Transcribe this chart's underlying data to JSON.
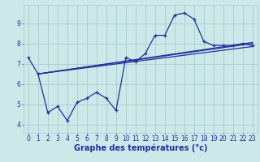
{
  "xlabel": "Graphe des températures (°c)",
  "bg_color": "#cce8e8",
  "grid_color": "#aacccc",
  "line_color": "#2030a0",
  "x_ticks": [
    0,
    1,
    2,
    3,
    4,
    5,
    6,
    7,
    8,
    9,
    10,
    11,
    12,
    13,
    14,
    15,
    16,
    17,
    18,
    19,
    20,
    21,
    22,
    23
  ],
  "y_ticks": [
    4,
    5,
    6,
    7,
    8,
    9
  ],
  "ylim": [
    3.6,
    9.9
  ],
  "xlim": [
    -0.5,
    23.5
  ],
  "main_series_x": [
    0,
    1,
    2,
    3,
    4,
    5,
    6,
    7,
    8,
    9,
    10,
    11,
    12,
    13,
    14,
    15,
    16,
    17,
    18,
    19,
    20,
    21,
    22,
    23
  ],
  "main_series_y": [
    7.3,
    6.5,
    4.6,
    4.9,
    4.2,
    5.1,
    5.3,
    5.6,
    5.3,
    4.7,
    7.3,
    7.1,
    7.5,
    8.4,
    8.4,
    9.4,
    9.5,
    9.2,
    8.1,
    7.9,
    7.9,
    7.9,
    8.0,
    7.9
  ],
  "trend_lines": [
    {
      "x": [
        1,
        23
      ],
      "y": [
        6.5,
        7.85
      ]
    },
    {
      "x": [
        1,
        23
      ],
      "y": [
        6.5,
        8.05
      ]
    },
    {
      "x": [
        1,
        23
      ],
      "y": [
        6.5,
        8.0
      ]
    }
  ],
  "xlabel_fontsize": 7,
  "tick_fontsize": 5.5,
  "linewidth": 0.9,
  "marker_size": 3.5
}
